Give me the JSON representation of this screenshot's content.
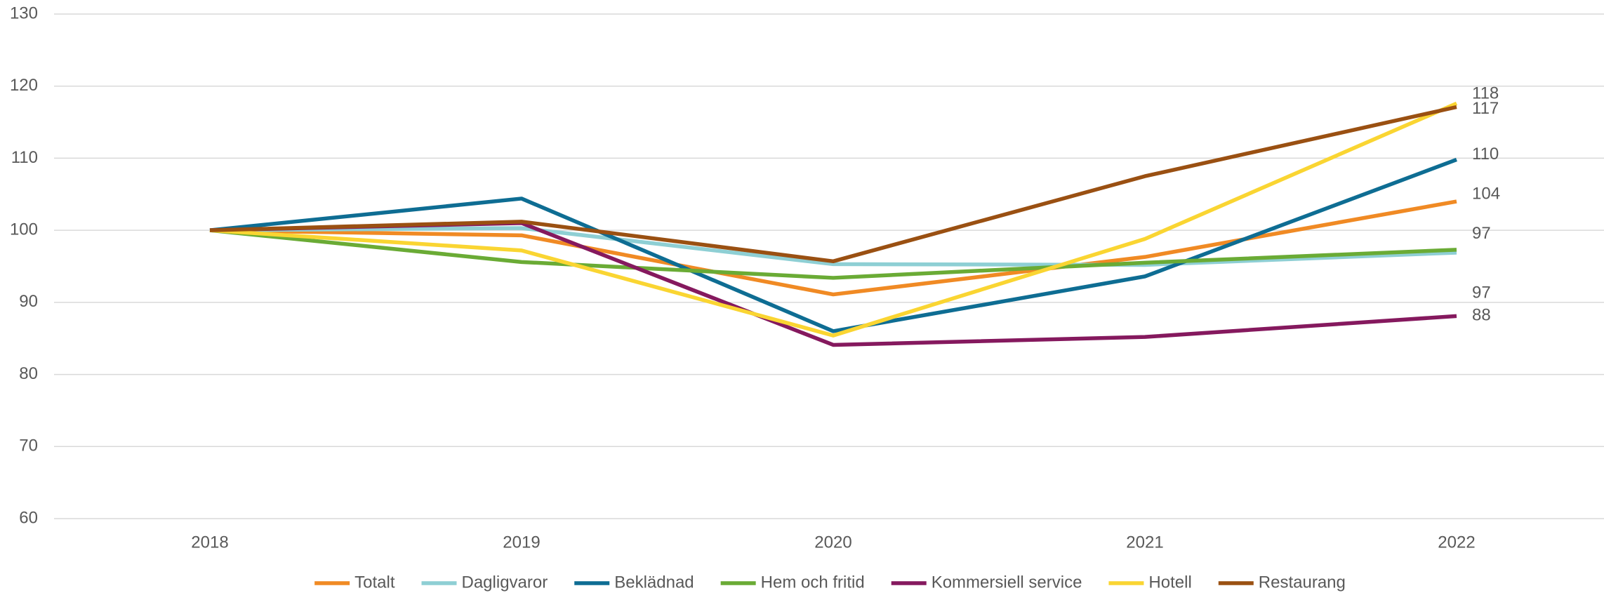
{
  "chart_data": {
    "type": "line",
    "categories": [
      "2018",
      "2019",
      "2020",
      "2021",
      "2022"
    ],
    "ylim": [
      60,
      130
    ],
    "yticks": [
      60,
      70,
      80,
      90,
      100,
      110,
      120,
      130
    ],
    "grid": true,
    "legend": "bottom",
    "series": [
      {
        "name": "Totalt",
        "color": "#f08a24",
        "values": [
          100,
          99.3,
          91.1,
          96.3,
          104
        ],
        "value_labels": [
          null,
          null,
          null,
          null,
          "104"
        ]
      },
      {
        "name": "Dagligvaror",
        "color": "#8ecfd4",
        "values": [
          100,
          100.3,
          95.3,
          95.2,
          96.9
        ],
        "value_labels": [
          null,
          null,
          null,
          null,
          "97"
        ]
      },
      {
        "name": "Beklädnad",
        "color": "#0e6d93",
        "values": [
          100,
          104.4,
          86,
          93.6,
          109.8
        ],
        "value_labels": [
          null,
          null,
          null,
          null,
          "110"
        ]
      },
      {
        "name": "Hem och fritid",
        "color": "#6aab35",
        "values": [
          100,
          95.6,
          93.4,
          95.5,
          97.3
        ],
        "value_labels": [
          null,
          null,
          null,
          null,
          "97"
        ]
      },
      {
        "name": "Kommersiell service",
        "color": "#85195e",
        "values": [
          100,
          101,
          84.1,
          85.2,
          88.1
        ],
        "value_labels": [
          null,
          null,
          null,
          null,
          "88"
        ]
      },
      {
        "name": "Hotell",
        "color": "#fad532",
        "values": [
          100,
          97.2,
          85.4,
          98.8,
          117.6
        ],
        "value_labels": [
          null,
          null,
          null,
          null,
          "118"
        ]
      },
      {
        "name": "Restaurang",
        "color": "#9a5012",
        "values": [
          100,
          101.2,
          95.7,
          107.5,
          117.1
        ],
        "value_labels": [
          null,
          null,
          null,
          null,
          "117"
        ]
      }
    ]
  }
}
